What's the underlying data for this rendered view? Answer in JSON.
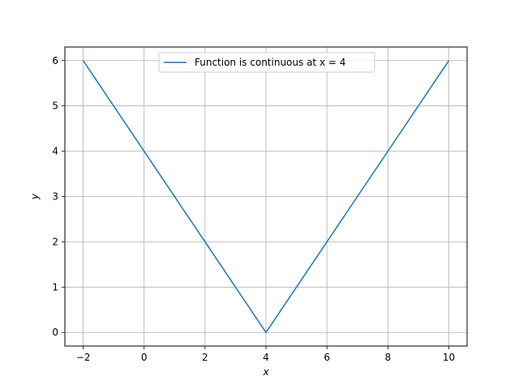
{
  "chart_data": {
    "type": "line",
    "title": "",
    "xlabel": "x",
    "ylabel": "y",
    "xlim": [
      -2.6,
      10.6
    ],
    "ylim": [
      -0.3,
      6.3
    ],
    "xticks": [
      -2,
      0,
      2,
      4,
      6,
      8,
      10
    ],
    "yticks": [
      0,
      1,
      2,
      3,
      4,
      5,
      6
    ],
    "xtick_labels": [
      "−2",
      "0",
      "2",
      "4",
      "6",
      "8",
      "10"
    ],
    "ytick_labels": [
      "0",
      "1",
      "2",
      "3",
      "4",
      "5",
      "6"
    ],
    "grid": true,
    "legend_position": "upper-center",
    "series": [
      {
        "name": "Function is continuous at x = 4",
        "color": "#1f77b4",
        "x": [
          -2,
          4,
          10
        ],
        "y": [
          6,
          0,
          6
        ]
      }
    ]
  }
}
